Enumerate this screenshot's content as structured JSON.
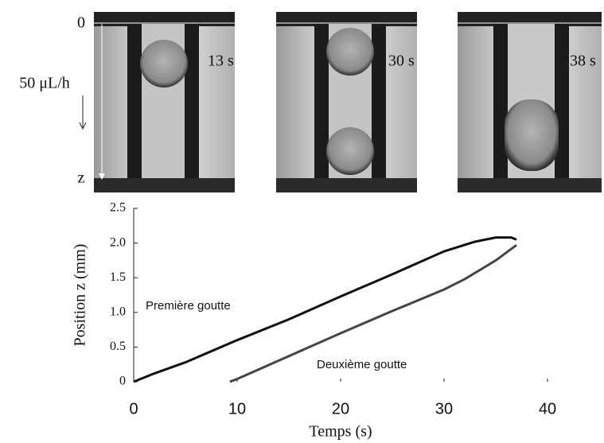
{
  "photos": {
    "times": [
      "13 s",
      "30 s",
      "38 s"
    ],
    "top_label": "0",
    "bottom_label": "z",
    "flow_label": "50 μL/h"
  },
  "chart_data": {
    "type": "line",
    "x_label": "Temps (s)",
    "y_label": "Position z (mm)",
    "xlim": [
      0,
      40
    ],
    "xticks": [
      0,
      10,
      20,
      30,
      40
    ],
    "ylim": [
      0,
      2.5
    ],
    "yticks": [
      0,
      {
        "value": 0.5,
        "label": "0.5"
      },
      {
        "value": 1,
        "label": "1.0"
      },
      {
        "value": 1.5,
        "label": "1.5"
      },
      {
        "value": 2,
        "label": "2.0"
      },
      {
        "value": 2.5,
        "label": "2.5"
      }
    ],
    "series": [
      {
        "name": "Première goutte",
        "color": "#111111",
        "x": [
          0,
          2,
          5,
          10,
          15,
          20,
          25,
          30,
          33,
          35,
          36.5,
          37
        ],
        "values": [
          0,
          0.12,
          0.28,
          0.6,
          0.9,
          1.23,
          1.55,
          1.88,
          2.02,
          2.08,
          2.08,
          2.05
        ]
      },
      {
        "name": "Deuxième goutte",
        "color": "#444444",
        "x": [
          9.3,
          10,
          15,
          20,
          25,
          30,
          32,
          35,
          37
        ],
        "values": [
          0,
          0.04,
          0.37,
          0.7,
          1.02,
          1.33,
          1.48,
          1.75,
          1.97
        ]
      }
    ]
  }
}
